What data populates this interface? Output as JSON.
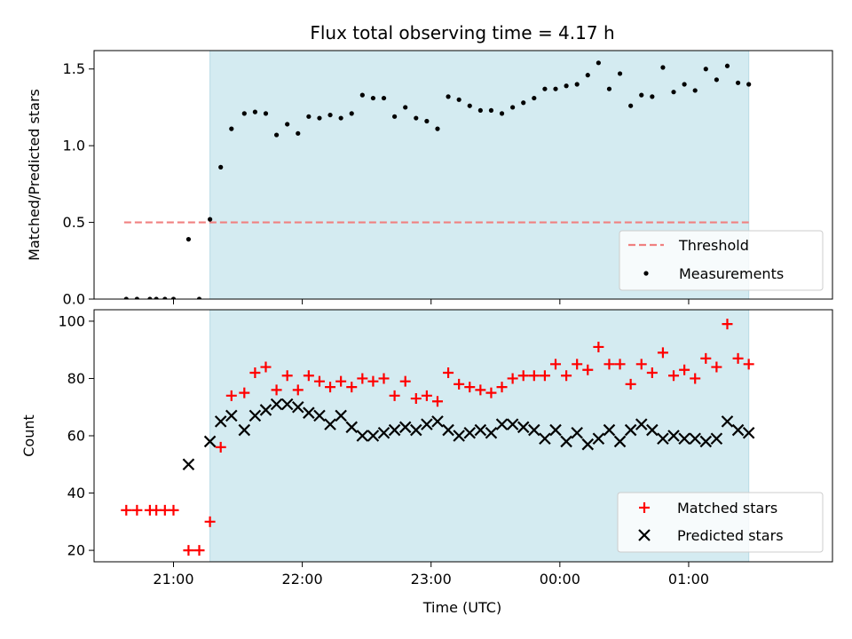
{
  "chart_data": [
    {
      "type": "scatter",
      "title": "Flux total observing time = 4.17 h",
      "ylabel": "Matched/Predicted stars",
      "xlabel": "",
      "ylim": [
        0,
        1.62
      ],
      "yticks": [
        0.0,
        0.5,
        1.0,
        1.5
      ],
      "ytick_labels": [
        "0.0",
        "0.5",
        "1.0",
        "1.5"
      ],
      "xlim": [
        "20:23",
        "02:07"
      ],
      "xtick_times": [
        "21:00",
        "22:00",
        "23:00",
        "00:00",
        "01:00"
      ],
      "shaded_region": {
        "start": "21:17",
        "end": "01:28",
        "color": "#d4ebf1"
      },
      "threshold": {
        "name": "Threshold",
        "value": 0.5,
        "start": "20:37",
        "end": "01:28",
        "color": "#f08080",
        "style": "dashed"
      },
      "legend_position": "bottom-right",
      "series": [
        {
          "name": "Measurements",
          "color": "#000000",
          "marker": "dot",
          "x": [
            "20:38",
            "20:43",
            "20:49",
            "20:52",
            "20:56",
            "21:00",
            "21:07",
            "21:12",
            "21:17",
            "21:22",
            "21:27",
            "21:33",
            "21:38",
            "21:43",
            "21:48",
            "21:53",
            "21:58",
            "22:03",
            "22:08",
            "22:13",
            "22:18",
            "22:23",
            "22:28",
            "22:33",
            "22:38",
            "22:43",
            "22:48",
            "22:53",
            "22:58",
            "23:03",
            "23:08",
            "23:13",
            "23:18",
            "23:23",
            "23:28",
            "23:33",
            "23:38",
            "23:43",
            "23:48",
            "23:53",
            "23:58",
            "00:03",
            "00:08",
            "00:13",
            "00:18",
            "00:23",
            "00:28",
            "00:33",
            "00:38",
            "00:43",
            "00:48",
            "00:53",
            "00:58",
            "01:03",
            "01:08",
            "01:13",
            "01:18",
            "01:23",
            "01:28"
          ],
          "y": [
            0.0,
            0.0,
            0.0,
            0.0,
            0.0,
            0.0,
            0.39,
            0.0,
            0.52,
            0.86,
            1.11,
            1.21,
            1.22,
            1.21,
            1.07,
            1.14,
            1.08,
            1.19,
            1.18,
            1.2,
            1.18,
            1.21,
            1.33,
            1.31,
            1.31,
            1.19,
            1.25,
            1.18,
            1.16,
            1.11,
            1.32,
            1.3,
            1.26,
            1.23,
            1.23,
            1.21,
            1.25,
            1.28,
            1.31,
            1.37,
            1.37,
            1.39,
            1.4,
            1.46,
            1.54,
            1.37,
            1.47,
            1.26,
            1.33,
            1.32,
            1.51,
            1.35,
            1.4,
            1.36,
            1.5,
            1.43,
            1.52,
            1.41,
            1.4
          ]
        }
      ]
    },
    {
      "type": "scatter",
      "title": "",
      "ylabel": "Count",
      "xlabel": "Time (UTC)",
      "ylim": [
        16,
        104
      ],
      "yticks": [
        20,
        40,
        60,
        80,
        100
      ],
      "ytick_labels": [
        "20",
        "40",
        "60",
        "80",
        "100"
      ],
      "xlim": [
        "20:23",
        "02:07"
      ],
      "xtick_labels": [
        "21:00",
        "22:00",
        "23:00",
        "00:00",
        "01:00"
      ],
      "xtick_times": [
        "21:00",
        "22:00",
        "23:00",
        "00:00",
        "01:00"
      ],
      "shaded_region": {
        "start": "21:17",
        "end": "01:28",
        "color": "#d4ebf1"
      },
      "legend_position": "bottom-right",
      "series": [
        {
          "name": "Matched stars",
          "color": "#ff0000",
          "marker": "plus",
          "x": [
            "20:38",
            "20:43",
            "20:49",
            "20:52",
            "20:56",
            "21:00",
            "21:07",
            "21:12",
            "21:17",
            "21:22",
            "21:27",
            "21:33",
            "21:38",
            "21:43",
            "21:48",
            "21:53",
            "21:58",
            "22:03",
            "22:08",
            "22:13",
            "22:18",
            "22:23",
            "22:28",
            "22:33",
            "22:38",
            "22:43",
            "22:48",
            "22:53",
            "22:58",
            "23:03",
            "23:08",
            "23:13",
            "23:18",
            "23:23",
            "23:28",
            "23:33",
            "23:38",
            "23:43",
            "23:48",
            "23:53",
            "23:58",
            "00:03",
            "00:08",
            "00:13",
            "00:18",
            "00:23",
            "00:28",
            "00:33",
            "00:38",
            "00:43",
            "00:48",
            "00:53",
            "00:58",
            "01:03",
            "01:08",
            "01:13",
            "01:18",
            "01:23",
            "01:28"
          ],
          "y": [
            34,
            34,
            34,
            34,
            34,
            34,
            20,
            20,
            30,
            56,
            74,
            75,
            82,
            84,
            76,
            81,
            76,
            81,
            79,
            77,
            79,
            77,
            80,
            79,
            80,
            74,
            79,
            73,
            74,
            72,
            82,
            78,
            77,
            76,
            75,
            77,
            80,
            81,
            81,
            81,
            85,
            81,
            85,
            83,
            91,
            85,
            85,
            78,
            85,
            82,
            89,
            81,
            83,
            80,
            87,
            84,
            99,
            87,
            85
          ]
        },
        {
          "name": "Predicted stars",
          "color": "#000000",
          "marker": "x",
          "x": [
            "21:07",
            "21:17",
            "21:22",
            "21:27",
            "21:33",
            "21:38",
            "21:43",
            "21:48",
            "21:53",
            "21:58",
            "22:03",
            "22:08",
            "22:13",
            "22:18",
            "22:23",
            "22:28",
            "22:33",
            "22:38",
            "22:43",
            "22:48",
            "22:53",
            "22:58",
            "23:03",
            "23:08",
            "23:13",
            "23:18",
            "23:23",
            "23:28",
            "23:33",
            "23:38",
            "23:43",
            "23:48",
            "23:53",
            "23:58",
            "00:03",
            "00:08",
            "00:13",
            "00:18",
            "00:23",
            "00:28",
            "00:33",
            "00:38",
            "00:43",
            "00:48",
            "00:53",
            "00:58",
            "01:03",
            "01:08",
            "01:13",
            "01:18",
            "01:23",
            "01:28"
          ],
          "y": [
            50,
            58,
            65,
            67,
            62,
            67,
            69,
            71,
            71,
            70,
            68,
            67,
            64,
            67,
            63,
            60,
            60,
            61,
            62,
            63,
            62,
            64,
            65,
            62,
            60,
            61,
            62,
            61,
            64,
            64,
            63,
            62,
            59,
            62,
            58,
            61,
            57,
            59,
            62,
            58,
            62,
            64,
            62,
            59,
            60,
            59,
            59,
            58,
            59,
            65,
            62,
            61
          ]
        }
      ]
    }
  ]
}
